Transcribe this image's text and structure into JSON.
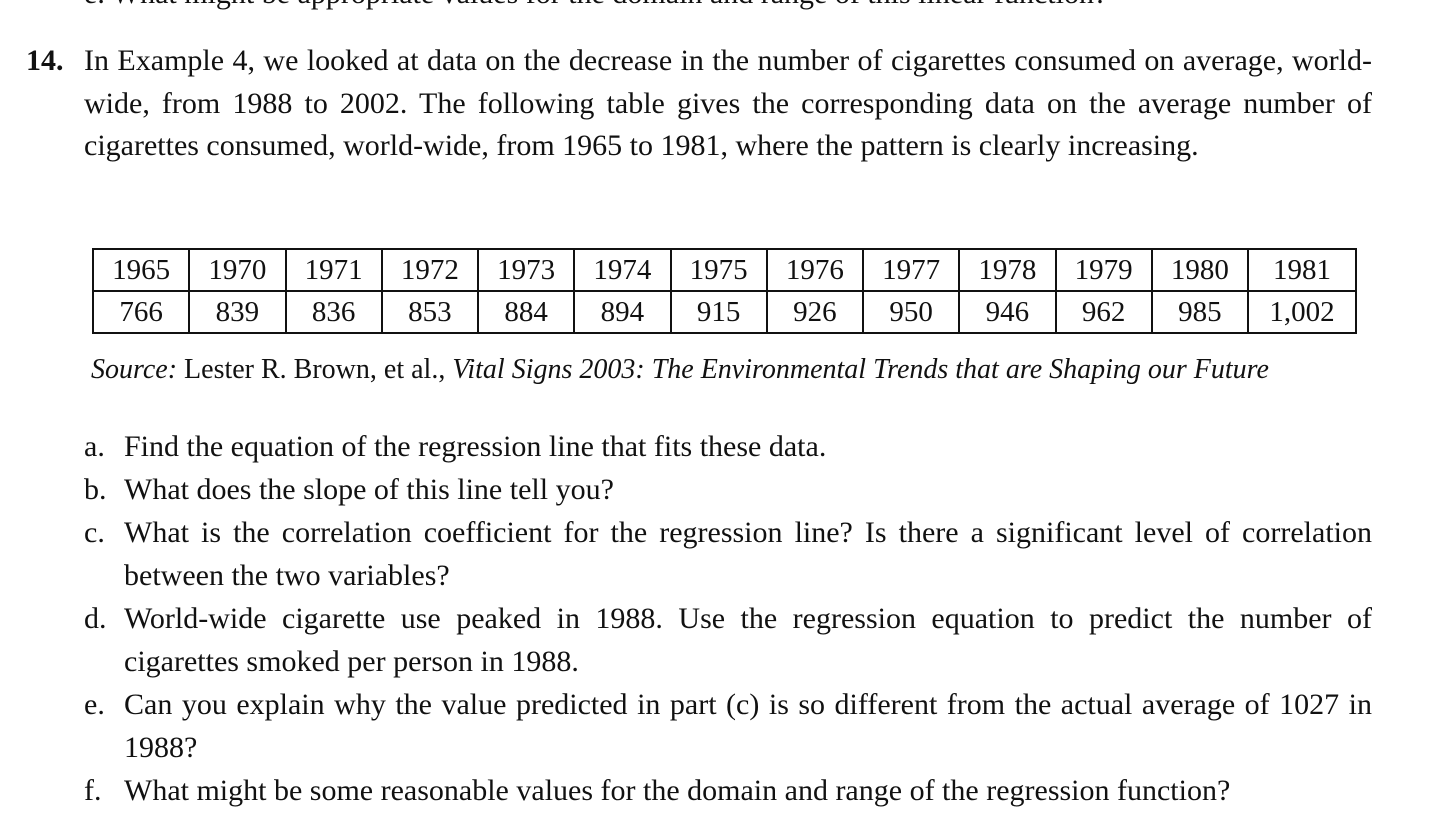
{
  "previous_item": {
    "text": "e.  What might be appropriate values for the domain and range of this linear function?"
  },
  "problem": {
    "number": "14.",
    "text": "In Example 4, we looked at data on the decrease in the number of cigarettes consumed on average, world-wide, from 1988 to 2002. The following table gives the corresponding data on the average number of cigarettes consumed, world-wide, from 1965 to 1981, where the pattern is clearly increasing."
  },
  "table": {
    "years": [
      "1965",
      "1970",
      "1971",
      "1972",
      "1973",
      "1974",
      "1975",
      "1976",
      "1977",
      "1978",
      "1979",
      "1980",
      "1981"
    ],
    "values": [
      "766",
      "839",
      "836",
      "853",
      "884",
      "894",
      "915",
      "926",
      "950",
      "946",
      "962",
      "985",
      "1,002"
    ]
  },
  "source": {
    "label": "Source:",
    "authors": " Lester R. Brown, et al., ",
    "title": "Vital Signs 2003: The Environmental Trends that are Shaping our Future"
  },
  "parts": [
    {
      "letter": "a.",
      "text": "Find the equation of the regression line that fits these data."
    },
    {
      "letter": "b.",
      "text": "What does the slope of this line tell you?"
    },
    {
      "letter": "c.",
      "text": "What is the correlation coefficient for the regression line? Is there a significant level of correlation between the two variables?"
    },
    {
      "letter": "d.",
      "text": "World-wide cigarette use peaked in 1988. Use the regression equation to predict the number of cigarettes smoked per person in 1988."
    },
    {
      "letter": "e.",
      "text": "Can you explain why the value predicted in part (c) is so different from the actual average of 1027 in 1988?"
    },
    {
      "letter": "f.",
      "text": "What might be some reasonable values for the domain and range of the regression function?"
    }
  ]
}
